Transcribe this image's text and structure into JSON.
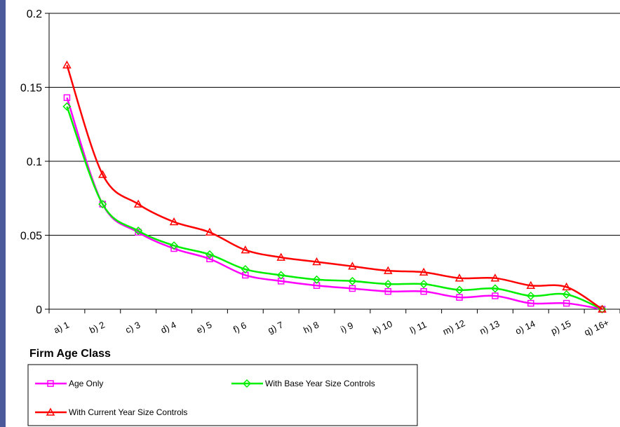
{
  "chart_data": {
    "type": "line",
    "title": "",
    "xlabel": "Firm Age Class",
    "ylabel": "",
    "ylim": [
      0,
      0.2
    ],
    "yticks": [
      "0",
      "0.05",
      "0.1",
      "0.15",
      "0.2"
    ],
    "ytick_values": [
      0,
      0.05,
      0.1,
      0.15,
      0.2
    ],
    "grid": "horizontal",
    "legend_position": "bottom",
    "categories": [
      "a) 1",
      "b) 2",
      "c) 3",
      "d) 4",
      "e) 5",
      "f) 6",
      "g) 7",
      "h) 8",
      "i) 9",
      "k) 10",
      "l) 11",
      "m) 12",
      "n) 13",
      "o) 14",
      "p) 15",
      "q) 16+"
    ],
    "series": [
      {
        "name": "Age Only",
        "color": "#ff00ff",
        "marker": "square",
        "values": [
          0.143,
          0.071,
          0.052,
          0.041,
          0.034,
          0.023,
          0.019,
          0.016,
          0.014,
          0.012,
          0.012,
          0.008,
          0.009,
          0.004,
          0.004,
          0.0
        ]
      },
      {
        "name": "With Base Year Size Controls",
        "color": "#00ee00",
        "marker": "diamond",
        "values": [
          0.137,
          0.071,
          0.053,
          0.043,
          0.037,
          0.027,
          0.023,
          0.02,
          0.019,
          0.017,
          0.017,
          0.013,
          0.014,
          0.009,
          0.01,
          0.0
        ]
      },
      {
        "name": "With Current Year Size Controls",
        "color": "#ff0000",
        "marker": "triangle",
        "values": [
          0.165,
          0.091,
          0.071,
          0.059,
          0.052,
          0.04,
          0.035,
          0.032,
          0.029,
          0.026,
          0.025,
          0.021,
          0.021,
          0.016,
          0.015,
          0.0
        ]
      }
    ]
  }
}
